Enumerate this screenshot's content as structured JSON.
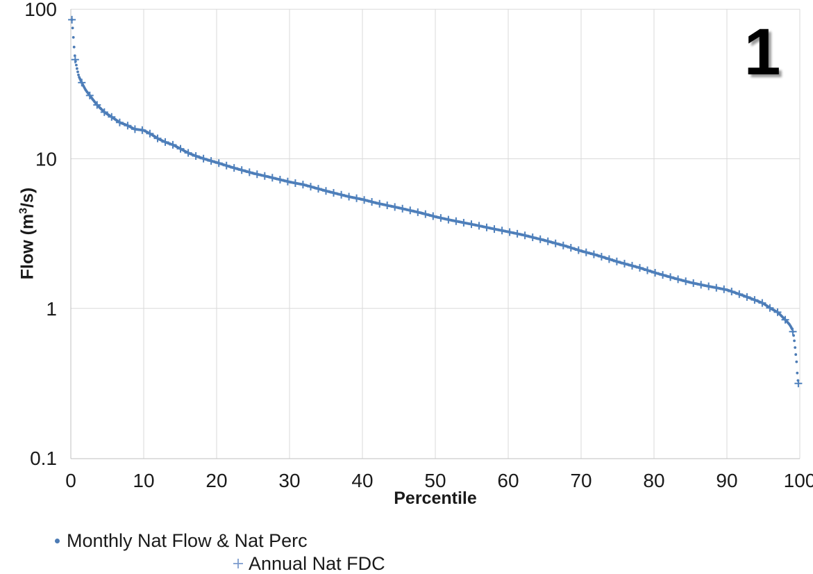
{
  "figure": {
    "annotation": "1"
  },
  "axes": {
    "x_title": "Percentile",
    "y_title_pre": "Flow (m",
    "y_title_sup": "3",
    "y_title_post": "/s)"
  },
  "legend": [
    {
      "label": "Monthly Nat Flow & Nat Perc",
      "marker": "dot"
    },
    {
      "label": "Annual Nat FDC",
      "marker": "plus"
    }
  ],
  "chart_data": {
    "type": "scatter",
    "title": "",
    "xlabel": "Percentile",
    "ylabel": "Flow (m3/s)",
    "annotation": "1",
    "x_axis": {
      "min": 0,
      "max": 100,
      "ticks": [
        0,
        10,
        20,
        30,
        40,
        50,
        60,
        70,
        80,
        90,
        100
      ],
      "gridlines": true
    },
    "y_axis": {
      "scale": "log",
      "min": 0.1,
      "max": 100,
      "ticks": [
        100,
        10,
        1,
        0.1
      ],
      "gridlines": true
    },
    "legend_position": "bottom-left",
    "series": [
      {
        "name": "Monthly Nat Flow & Nat Perc",
        "marker": "dot",
        "color": "#4c7bb5",
        "description": "dense monthly naturalized flows plotted at their naturalized percentile, tracing the flow duration curve"
      },
      {
        "name": "Annual Nat FDC",
        "marker": "plus",
        "color": "#4f81bd",
        "description": "annual flow duration curve points at ~1 percentile spacing along the same curve"
      }
    ],
    "fdc_curve": [
      [
        0.15,
        85
      ],
      [
        0.2,
        80
      ],
      [
        0.3,
        70
      ],
      [
        0.4,
        60
      ],
      [
        0.5,
        52
      ],
      [
        0.6,
        46
      ],
      [
        0.7,
        43.5
      ],
      [
        0.9,
        39
      ],
      [
        1.1,
        35.5
      ],
      [
        1.5,
        32.3
      ],
      [
        2,
        29
      ],
      [
        2.7,
        26.1
      ],
      [
        3.6,
        22.9
      ],
      [
        4.6,
        20.5
      ],
      [
        5.7,
        18.9
      ],
      [
        6.7,
        17.5
      ],
      [
        7.9,
        16.6
      ],
      [
        8.7,
        15.8
      ],
      [
        10,
        15.5
      ],
      [
        11,
        14.6
      ],
      [
        12,
        13.6
      ],
      [
        13,
        12.9
      ],
      [
        14,
        12.4
      ],
      [
        15,
        11.7
      ],
      [
        16,
        11.0
      ],
      [
        17,
        10.5
      ],
      [
        18,
        10.1
      ],
      [
        19,
        9.75
      ],
      [
        20,
        9.45
      ],
      [
        22,
        8.8
      ],
      [
        25,
        8.0
      ],
      [
        27,
        7.6
      ],
      [
        30,
        7.0
      ],
      [
        32,
        6.7
      ],
      [
        35,
        6.1
      ],
      [
        38,
        5.6
      ],
      [
        40,
        5.35
      ],
      [
        42,
        5.05
      ],
      [
        45,
        4.7
      ],
      [
        48,
        4.35
      ],
      [
        50,
        4.1
      ],
      [
        52,
        3.9
      ],
      [
        55,
        3.65
      ],
      [
        58,
        3.4
      ],
      [
        60,
        3.25
      ],
      [
        62,
        3.1
      ],
      [
        65,
        2.85
      ],
      [
        68,
        2.6
      ],
      [
        70,
        2.42
      ],
      [
        72,
        2.28
      ],
      [
        75,
        2.05
      ],
      [
        78,
        1.87
      ],
      [
        80,
        1.74
      ],
      [
        83,
        1.58
      ],
      [
        85,
        1.49
      ],
      [
        87,
        1.42
      ],
      [
        89,
        1.36
      ],
      [
        90,
        1.33
      ],
      [
        91,
        1.28
      ],
      [
        92,
        1.23
      ],
      [
        93,
        1.18
      ],
      [
        94,
        1.13
      ],
      [
        95,
        1.08
      ],
      [
        96,
        1.0
      ],
      [
        97,
        0.94
      ],
      [
        98,
        0.84
      ],
      [
        98.6,
        0.78
      ],
      [
        99,
        0.72
      ],
      [
        99.2,
        0.64
      ],
      [
        99.4,
        0.52
      ],
      [
        99.55,
        0.44
      ],
      [
        99.65,
        0.37
      ],
      [
        99.75,
        0.33
      ],
      [
        99.8,
        0.315
      ]
    ],
    "monthly_sampling": {
      "start": 0.15,
      "end": 99.8,
      "step": 0.1
    },
    "annual_percentiles_head": [
      0.15,
      0.6,
      1.5,
      2.6,
      3.6,
      4.6,
      5.6,
      6.7,
      7.8,
      8.8
    ],
    "annual_rule": {
      "start": 9.8,
      "step": 1.05,
      "end": 99.4
    },
    "annual_tail": [
      99.8
    ],
    "colors": {
      "series": "#4f81bd",
      "monthly_dots": "#4c7bb5",
      "gridline": "#d9d9d9",
      "axis": "#bfbfbf",
      "text": "#1a1a1a"
    }
  }
}
